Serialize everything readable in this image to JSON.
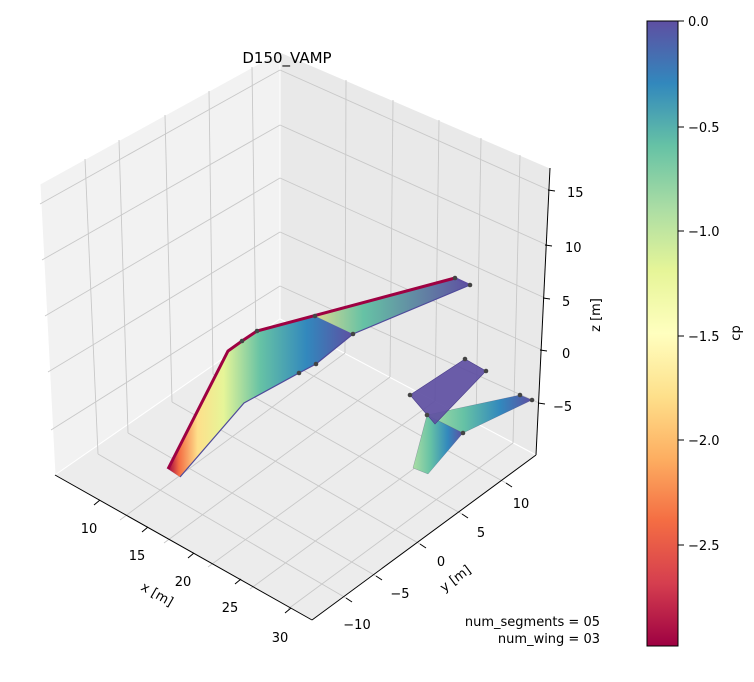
{
  "chart_data": {
    "type": "surface3d",
    "title": "D150_VAMP",
    "xlabel": "x [m]",
    "ylabel": "y [m]",
    "zlabel": "z [m]",
    "x_ticks": [
      "10",
      "15",
      "20",
      "25",
      "30"
    ],
    "y_ticks": [
      "−10",
      "−5",
      "0",
      "5",
      "10"
    ],
    "z_ticks": [
      "−5",
      "0",
      "5",
      "10",
      "15"
    ],
    "grid": true,
    "colorbar": {
      "label": "cp",
      "colormap": "Spectral",
      "range": [
        -3.0,
        0.0
      ],
      "ticks": [
        "0.0",
        "−0.5",
        "−1.0",
        "−1.5",
        "−2.0",
        "−2.5"
      ]
    },
    "surfaces": [
      {
        "name": "main wing",
        "cp_range": [
          -2.9,
          0.0
        ]
      },
      {
        "name": "vertical tail",
        "cp_range": [
          -0.1,
          0.0
        ]
      },
      {
        "name": "horizontal tail",
        "cp_range": [
          -0.8,
          0.0
        ]
      }
    ],
    "annotations": [
      "num_segments = 05",
      "num_wing = 03"
    ]
  },
  "colors": {
    "pane": "#f2f2f2",
    "pane_dark": "#e6e6e6",
    "grid": "#c8c8c8",
    "vertex": "#444444"
  }
}
